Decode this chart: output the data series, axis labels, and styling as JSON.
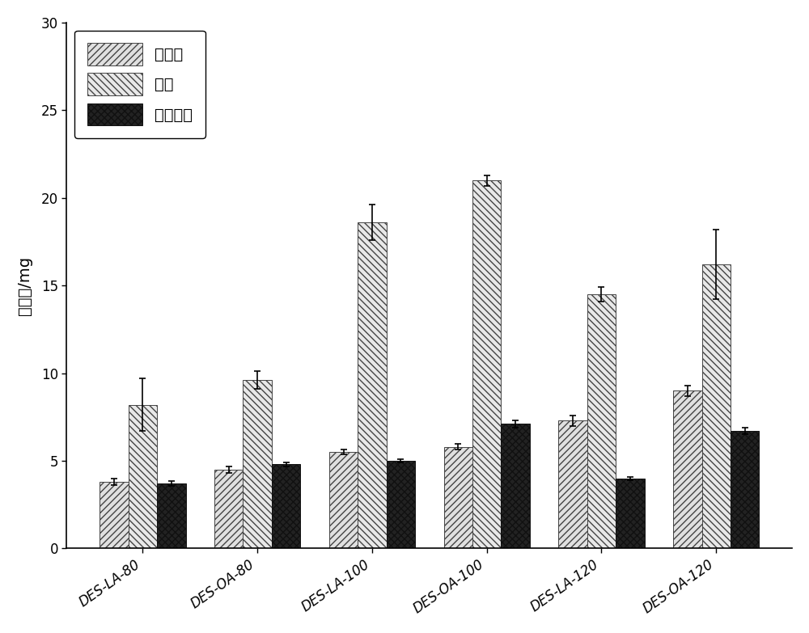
{
  "categories": [
    "DES-LA-80",
    "DES-OA-80",
    "DES-LA-100",
    "DES-OA-100",
    "DES-LA-120",
    "DES-OA-120"
  ],
  "series": [
    {
      "name": "葫萄糖",
      "values": [
        3.8,
        4.5,
        5.5,
        5.8,
        7.3,
        9.0
      ],
      "errors": [
        0.2,
        0.2,
        0.15,
        0.15,
        0.3,
        0.3
      ],
      "hatch": "////",
      "facecolor": "#e0e0e0",
      "edgecolor": "#444444"
    },
    {
      "name": "木糖",
      "values": [
        8.2,
        9.6,
        18.6,
        21.0,
        14.5,
        16.2
      ],
      "errors": [
        1.5,
        0.5,
        1.0,
        0.3,
        0.4,
        2.0
      ],
      "hatch": "\\\\\\\\",
      "facecolor": "#e8e8e8",
      "edgecolor": "#444444"
    },
    {
      "name": "阿拉伯糖",
      "values": [
        3.7,
        4.8,
        5.0,
        7.1,
        4.0,
        6.7
      ],
      "errors": [
        0.15,
        0.1,
        0.1,
        0.2,
        0.1,
        0.2
      ],
      "hatch": "xxxx",
      "facecolor": "#222222",
      "edgecolor": "#111111"
    }
  ],
  "ylabel": "糖含量/mg",
  "ylim": [
    0,
    30
  ],
  "yticks": [
    0,
    5,
    10,
    15,
    20,
    25,
    30
  ],
  "bar_width": 0.25,
  "legend_fontsize": 14,
  "tick_fontsize": 12,
  "ylabel_fontsize": 14,
  "figure_facecolor": "#ffffff",
  "axes_facecolor": "#ffffff"
}
